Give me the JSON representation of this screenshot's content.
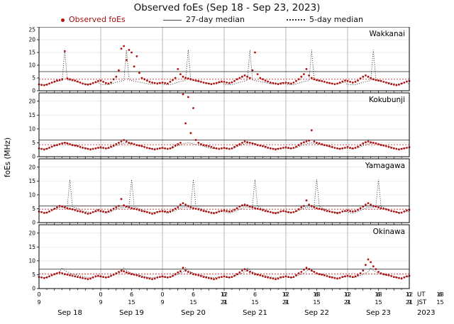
{
  "title": "Observed foEs (Sep 18 - Sep 23, 2023)",
  "ylabel": "foEs (MHz)",
  "legend": [
    {
      "label": "Observed foEs",
      "marker": "red-dot",
      "color": "#b01010"
    },
    {
      "label": "27-day median",
      "marker": "solid-line",
      "color": "#555555"
    },
    {
      "label": "5-day median",
      "marker": "dotted-line",
      "color": "#222222"
    }
  ],
  "x_axis": {
    "ut_hours": [
      "0",
      "6",
      "12",
      "18"
    ],
    "jst_hours": [
      "9",
      "15",
      "21"
    ],
    "end_ut": "0",
    "end_jst": "9",
    "ut_label": "UT",
    "jst_label": "JST",
    "dates": [
      "Sep 18",
      "Sep 19",
      "Sep 20",
      "Sep 21",
      "Sep 22",
      "Sep 23"
    ],
    "year": "2023"
  },
  "chart_data": {
    "type": "scatter",
    "x_unit": "hours UT from Sep 18 00:00",
    "x_range": [
      0,
      144
    ],
    "dot_color": "#b01010",
    "stations": [
      {
        "name": "Wakkanai",
        "ylim": [
          0,
          25
        ],
        "yticks": [
          0,
          5,
          10,
          15,
          20,
          25
        ],
        "median27_level": 7.5,
        "ref_dotted_level": 4.5,
        "median5_diurnal": [
          2.5,
          2.4,
          2.3,
          2.4,
          2.7,
          3.0,
          3.3,
          3.6,
          3.8,
          4.0,
          16.0,
          4.2,
          4.0,
          3.8,
          3.6,
          3.4,
          3.2,
          3.0,
          2.8,
          2.6,
          2.7,
          2.9,
          3.1,
          3.3
        ],
        "observed_hourly": [
          2.5,
          2.3,
          2.2,
          2.4,
          2.8,
          3.2,
          3.6,
          4.0,
          4.2,
          4.5,
          15.5,
          4.8,
          4.5,
          4.2,
          4.0,
          3.6,
          3.2,
          2.8,
          2.5,
          2.4,
          2.6,
          3.0,
          3.4,
          3.8,
          4.0,
          3.5,
          3.0,
          2.8,
          3.2,
          4.5,
          5.5,
          8.0,
          16.5,
          17.5,
          12.0,
          16.0,
          15.0,
          9.5,
          13.5,
          7.0,
          5.0,
          4.5,
          4.0,
          3.5,
          3.2,
          3.0,
          2.8,
          3.0,
          3.2,
          3.0,
          2.8,
          3.5,
          4.2,
          5.0,
          8.5,
          6.5,
          5.5,
          5.0,
          4.8,
          4.5,
          4.2,
          4.0,
          3.8,
          3.5,
          3.2,
          3.0,
          2.8,
          2.6,
          2.8,
          3.0,
          3.4,
          3.6,
          3.5,
          3.2,
          3.0,
          3.3,
          3.8,
          4.5,
          5.0,
          5.5,
          6.0,
          5.5,
          5.0,
          8.0,
          15.0,
          6.5,
          5.0,
          4.5,
          4.0,
          3.6,
          3.2,
          3.0,
          2.8,
          2.6,
          2.8,
          3.0,
          3.2,
          3.0,
          2.8,
          3.2,
          3.8,
          4.5,
          5.5,
          6.5,
          8.5,
          6.0,
          5.0,
          4.5,
          4.2,
          4.0,
          3.8,
          3.5,
          3.2,
          3.0,
          2.8,
          2.6,
          2.8,
          3.2,
          3.6,
          4.0,
          3.8,
          3.5,
          3.2,
          3.5,
          4.0,
          4.8,
          5.5,
          6.0,
          5.5,
          5.0,
          4.5,
          4.2,
          4.0,
          3.8,
          3.5,
          3.2,
          2.9,
          2.6,
          2.4,
          2.2,
          2.4,
          2.8,
          3.2,
          3.6,
          3.8
        ]
      },
      {
        "name": "Kokubunji",
        "ylim": [
          0,
          23
        ],
        "yticks": [
          0,
          5,
          10,
          15,
          20
        ],
        "median27_level": 6.0,
        "ref_dotted_level": 4.3,
        "median5_diurnal": [
          3.0,
          2.9,
          2.8,
          2.9,
          3.2,
          3.6,
          4.0,
          4.3,
          4.6,
          4.8,
          5.0,
          4.8,
          4.6,
          4.4,
          4.2,
          4.0,
          3.8,
          3.5,
          3.2,
          3.0,
          2.9,
          3.0,
          3.1,
          3.2
        ],
        "observed_hourly": [
          3.0,
          2.8,
          2.6,
          2.8,
          3.2,
          3.6,
          4.0,
          4.2,
          4.5,
          4.8,
          5.0,
          4.8,
          4.5,
          4.2,
          4.0,
          3.8,
          3.5,
          3.2,
          3.0,
          2.8,
          2.6,
          2.8,
          3.0,
          3.2,
          3.4,
          3.2,
          3.0,
          3.2,
          3.6,
          4.0,
          4.5,
          5.0,
          5.5,
          6.0,
          5.5,
          5.0,
          4.8,
          4.5,
          4.2,
          4.0,
          3.8,
          3.5,
          3.2,
          3.0,
          2.8,
          2.6,
          2.8,
          3.0,
          3.2,
          3.0,
          2.8,
          3.0,
          3.4,
          4.0,
          4.5,
          5.0,
          22.5,
          12.0,
          21.5,
          8.5,
          17.5,
          6.0,
          5.0,
          4.5,
          4.2,
          4.0,
          3.8,
          3.5,
          3.2,
          3.0,
          2.8,
          3.0,
          3.2,
          3.0,
          2.8,
          3.0,
          3.5,
          4.0,
          4.5,
          5.0,
          5.5,
          5.2,
          5.0,
          4.8,
          4.5,
          4.2,
          4.0,
          3.8,
          3.5,
          3.2,
          3.0,
          2.8,
          2.6,
          2.8,
          3.0,
          3.2,
          3.4,
          3.2,
          3.0,
          3.2,
          3.6,
          4.2,
          4.8,
          5.2,
          5.5,
          5.8,
          9.5,
          5.5,
          5.0,
          4.8,
          4.5,
          4.2,
          4.0,
          3.8,
          3.5,
          3.2,
          3.0,
          2.8,
          3.0,
          3.2,
          3.5,
          3.2,
          3.0,
          3.2,
          3.6,
          4.2,
          4.8,
          5.2,
          5.5,
          5.2,
          5.0,
          4.8,
          4.5,
          4.2,
          4.0,
          3.8,
          3.5,
          3.2,
          3.0,
          2.8,
          2.6,
          2.8,
          3.0,
          3.2,
          3.4
        ]
      },
      {
        "name": "Yamagawa",
        "ylim": [
          0,
          23
        ],
        "yticks": [
          0,
          5,
          10,
          15,
          20
        ],
        "median27_level": 6.0,
        "ref_dotted_level": 4.8,
        "median5_diurnal": [
          3.8,
          3.6,
          3.5,
          3.6,
          4.0,
          4.4,
          4.8,
          5.2,
          5.5,
          5.6,
          5.5,
          6.0,
          15.5,
          5.8,
          5.4,
          5.0,
          4.6,
          4.2,
          4.0,
          3.8,
          3.6,
          3.7,
          3.9,
          4.1
        ],
        "observed_hourly": [
          4.0,
          3.8,
          3.5,
          3.6,
          4.0,
          4.5,
          5.0,
          5.5,
          6.0,
          5.8,
          5.5,
          5.2,
          5.0,
          4.8,
          4.5,
          4.2,
          4.0,
          3.8,
          3.5,
          3.2,
          3.4,
          3.8,
          4.2,
          4.5,
          4.2,
          4.0,
          3.8,
          4.0,
          4.4,
          5.0,
          5.5,
          6.0,
          8.5,
          6.2,
          5.8,
          5.5,
          5.2,
          5.0,
          4.8,
          4.5,
          4.2,
          4.0,
          3.8,
          3.5,
          3.2,
          3.4,
          3.8,
          4.0,
          4.2,
          4.0,
          3.8,
          4.0,
          4.5,
          5.0,
          5.5,
          6.5,
          7.0,
          6.5,
          6.0,
          5.5,
          5.2,
          5.0,
          4.8,
          4.5,
          4.2,
          4.0,
          3.8,
          3.5,
          3.4,
          3.6,
          4.0,
          4.2,
          4.4,
          4.2,
          4.0,
          4.2,
          4.6,
          5.2,
          5.8,
          6.2,
          6.5,
          6.2,
          5.8,
          5.5,
          5.2,
          5.0,
          4.8,
          4.5,
          4.2,
          4.0,
          3.8,
          3.5,
          3.4,
          3.6,
          4.0,
          4.2,
          4.0,
          3.8,
          3.6,
          3.8,
          4.2,
          4.8,
          5.5,
          6.0,
          8.0,
          6.5,
          6.0,
          5.5,
          5.2,
          5.0,
          4.8,
          4.5,
          4.2,
          4.0,
          3.8,
          3.6,
          3.4,
          3.6,
          4.0,
          4.2,
          4.4,
          4.2,
          4.0,
          4.2,
          4.6,
          5.2,
          5.8,
          6.5,
          7.0,
          6.5,
          6.0,
          5.8,
          5.5,
          5.2,
          5.0,
          4.8,
          4.5,
          4.2,
          4.0,
          3.8,
          3.5,
          3.6,
          4.0,
          4.4,
          4.6
        ]
      },
      {
        "name": "Okinawa",
        "ylim": [
          0,
          23
        ],
        "yticks": [
          0,
          5,
          10,
          15,
          20
        ],
        "median27_level": 7.0,
        "ref_dotted_level": 5.3,
        "median5_diurnal": [
          4.2,
          4.0,
          3.9,
          4.0,
          4.4,
          4.8,
          5.2,
          5.6,
          6.0,
          7.5,
          6.5,
          6.0,
          5.6,
          5.2,
          5.0,
          4.8,
          4.6,
          4.4,
          4.2,
          4.0,
          3.9,
          4.0,
          4.2,
          4.3
        ],
        "observed_hourly": [
          4.2,
          4.0,
          3.8,
          4.0,
          4.4,
          4.8,
          5.2,
          5.5,
          5.8,
          5.5,
          5.2,
          5.0,
          4.8,
          4.6,
          4.4,
          4.2,
          4.0,
          3.8,
          3.6,
          3.4,
          3.6,
          4.0,
          4.4,
          4.6,
          4.4,
          4.2,
          4.0,
          4.2,
          4.6,
          5.0,
          5.5,
          6.0,
          6.5,
          6.2,
          5.8,
          5.5,
          5.2,
          5.0,
          4.8,
          4.5,
          4.2,
          4.0,
          3.8,
          3.6,
          3.4,
          3.6,
          4.0,
          4.2,
          4.4,
          4.2,
          4.0,
          4.2,
          4.6,
          5.2,
          5.8,
          6.2,
          7.5,
          6.5,
          6.0,
          5.6,
          5.2,
          5.0,
          4.8,
          4.5,
          4.2,
          4.0,
          3.8,
          3.6,
          3.4,
          3.6,
          4.0,
          4.2,
          4.4,
          4.2,
          4.0,
          4.2,
          4.6,
          5.2,
          5.8,
          6.5,
          7.0,
          6.5,
          6.0,
          5.6,
          5.2,
          5.0,
          4.8,
          4.5,
          4.2,
          4.0,
          3.8,
          3.6,
          3.4,
          3.6,
          4.0,
          4.2,
          4.4,
          4.2,
          4.0,
          4.2,
          4.8,
          5.5,
          6.0,
          6.8,
          7.5,
          7.0,
          6.5,
          6.0,
          5.5,
          5.2,
          5.0,
          4.8,
          4.5,
          4.2,
          4.0,
          3.8,
          3.6,
          3.8,
          4.2,
          4.4,
          4.6,
          4.4,
          4.2,
          4.4,
          4.8,
          5.5,
          6.5,
          8.5,
          10.5,
          9.5,
          8.0,
          7.0,
          6.0,
          5.5,
          5.2,
          5.0,
          4.8,
          4.5,
          4.2,
          4.0,
          3.8,
          3.6,
          4.0,
          4.4,
          4.6
        ]
      }
    ]
  }
}
